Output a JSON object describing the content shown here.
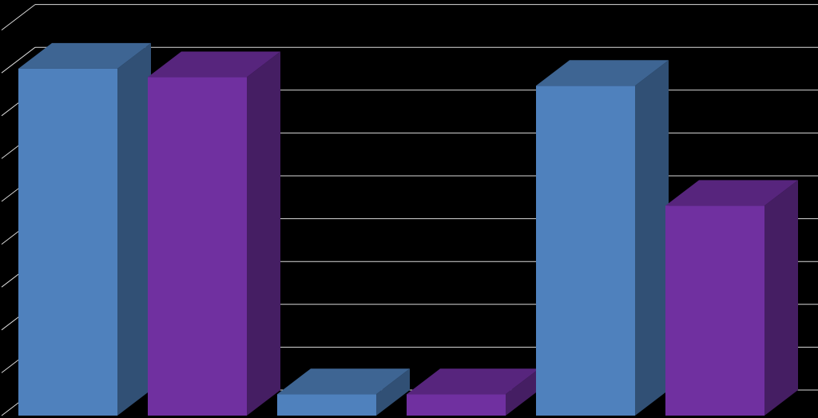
{
  "chart_data": {
    "type": "bar",
    "style": "3d-clustered-column",
    "categories": [
      "",
      "",
      ""
    ],
    "series": [
      {
        "values": [
          8.1,
          0.5,
          7.7
        ],
        "color": "#4F81BD"
      },
      {
        "values": [
          7.9,
          0.5,
          4.9
        ],
        "color": "#7030A0"
      }
    ],
    "ylim": [
      0,
      9
    ],
    "grid": true,
    "legend": "none",
    "background": "#000000",
    "gridline_color": "#FFFFFF"
  }
}
